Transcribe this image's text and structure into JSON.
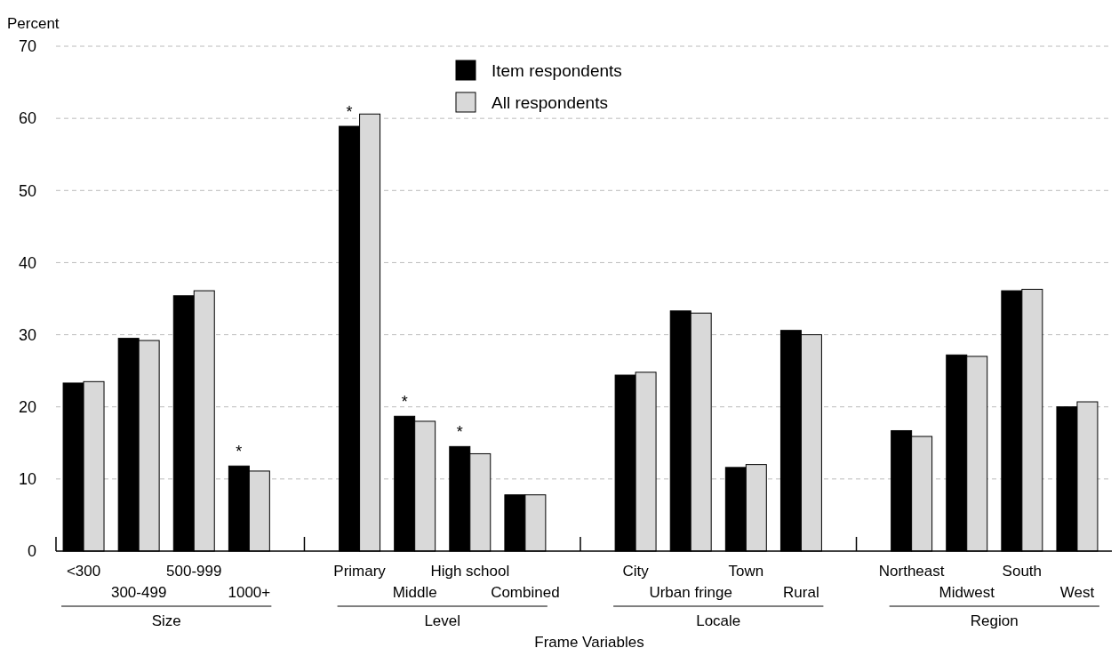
{
  "chart_data": {
    "type": "bar",
    "ylabel": "Percent",
    "xlabel": "Frame Variables",
    "categories": [
      "<300",
      "300-499",
      "500-999",
      "1000+",
      null,
      "Primary",
      "Middle",
      "High school",
      "Combined",
      null,
      "City",
      "Urban fringe",
      "Town",
      "Rural",
      null,
      "Northeast",
      "Midwest",
      "South",
      "West"
    ],
    "series": [
      {
        "name": "Item respondents",
        "color": "#000000",
        "values": [
          23.3,
          29.5,
          35.4,
          11.8,
          null,
          58.9,
          18.7,
          14.5,
          7.8,
          null,
          24.4,
          33.3,
          11.6,
          30.6,
          null,
          16.7,
          27.2,
          36.1,
          20.0
        ]
      },
      {
        "name": "All respondents",
        "color": "#d9d9d9",
        "values": [
          23.5,
          29.2,
          36.1,
          11.1,
          null,
          60.6,
          18.0,
          13.5,
          7.8,
          null,
          24.8,
          33.0,
          12.0,
          30.0,
          null,
          15.9,
          27.0,
          36.3,
          20.7
        ]
      }
    ],
    "ylim": [
      0,
      70
    ],
    "yticks": [
      0,
      10,
      20,
      30,
      40,
      50,
      60,
      70
    ],
    "grid": "y",
    "legend": "top",
    "annotations": [
      "Size",
      "Level",
      "Locale",
      "Region",
      {
        "text": "*",
        "x": "1000+",
        "y": 11.8
      },
      {
        "text": "*",
        "x": "Primary",
        "y": 58.9
      },
      {
        "text": "*",
        "x": "Middle",
        "y": 18.7
      },
      {
        "text": "*",
        "x": "High school",
        "y": 14.5
      }
    ]
  }
}
